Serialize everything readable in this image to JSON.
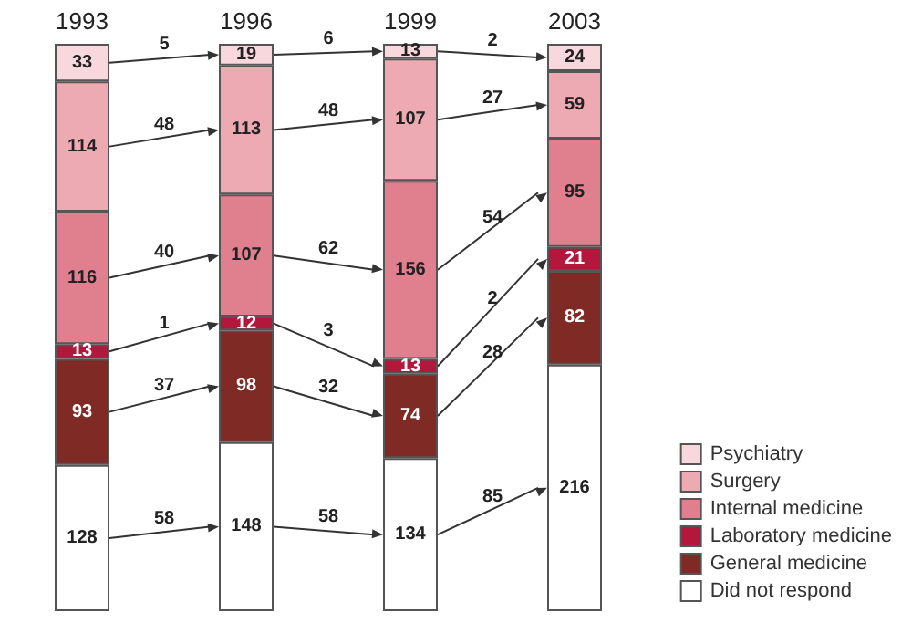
{
  "chart_data": {
    "type": "bar",
    "stacked": true,
    "data_labels": true,
    "legend": "bottom right",
    "categories": [
      "1993",
      "1996",
      "1999",
      "2003"
    ],
    "series": [
      {
        "name": "Did not respond",
        "color": "#ffffff",
        "values": [
          128,
          148,
          134,
          216
        ]
      },
      {
        "name": "General medicine",
        "color": "#7f2a24",
        "values": [
          93,
          98,
          74,
          82
        ]
      },
      {
        "name": "Laboratory medicine",
        "color": "#b3173b",
        "values": [
          13,
          12,
          13,
          21
        ]
      },
      {
        "name": "Internal medicine",
        "color": "#e07f8d",
        "values": [
          116,
          107,
          156,
          95
        ]
      },
      {
        "name": "Surgery",
        "color": "#eeaab2",
        "values": [
          114,
          113,
          107,
          59
        ]
      },
      {
        "name": "Psychiatry",
        "color": "#f9d8dd",
        "values": [
          33,
          19,
          13,
          24
        ]
      }
    ],
    "annotations": [
      "58",
      "37",
      "1",
      "40",
      "48",
      "5",
      "58",
      "32",
      "3",
      "62",
      "48",
      "6",
      "85",
      "28",
      "2",
      "54",
      "27",
      "2"
    ]
  }
}
